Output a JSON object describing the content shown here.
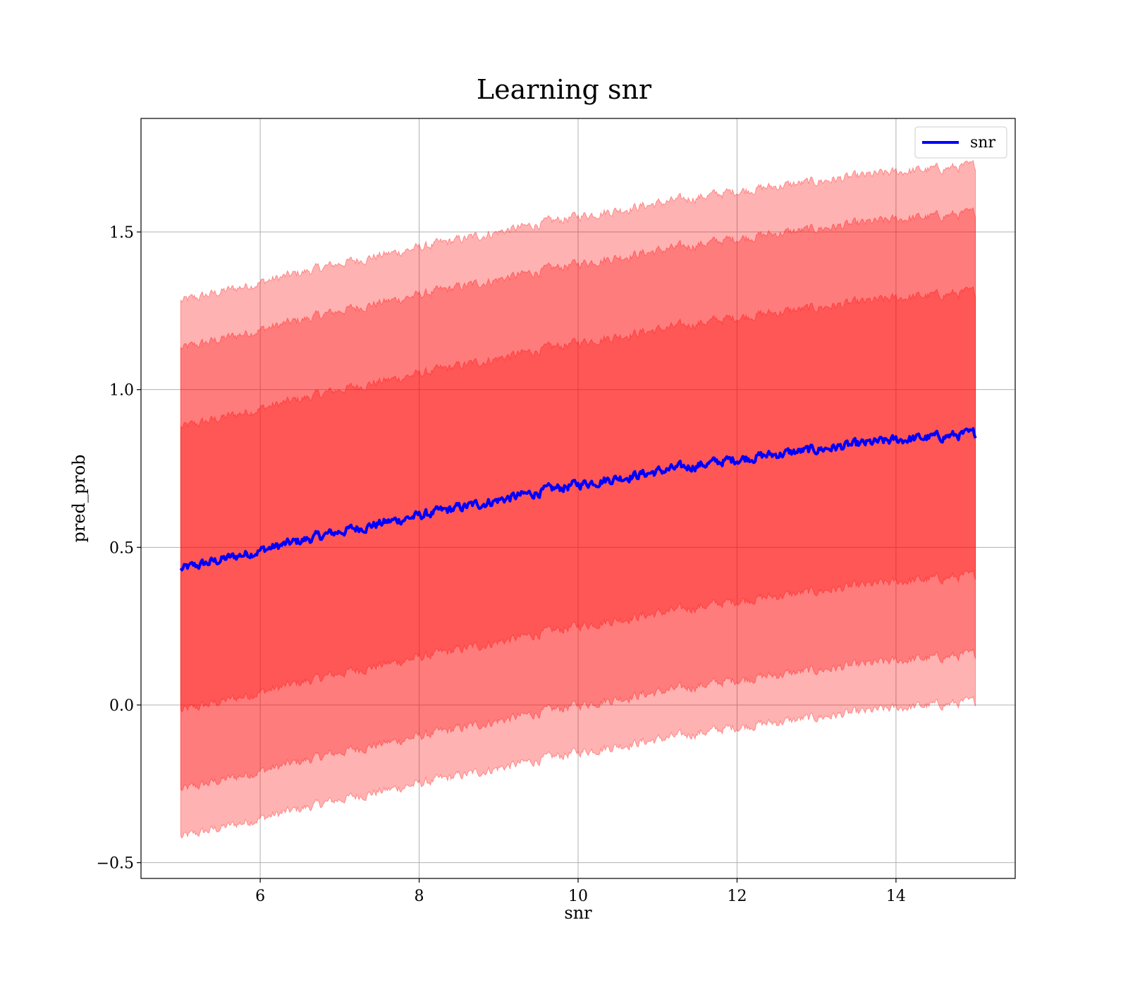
{
  "chart_data": {
    "type": "line",
    "title": "Learning snr",
    "xlabel": "snr",
    "ylabel": "pred_prob",
    "xlim": [
      4.5,
      15.5
    ],
    "ylim": [
      -0.55,
      1.86
    ],
    "grid": true,
    "legend_position": "top-right",
    "x_ticks": [
      6,
      8,
      10,
      12,
      14
    ],
    "x_tick_labels": [
      "6",
      "8",
      "10",
      "12",
      "14"
    ],
    "y_ticks": [
      -0.5,
      0.0,
      0.5,
      1.0,
      1.5
    ],
    "y_tick_labels": [
      "−0.5",
      "0.0",
      "0.5",
      "1.0",
      "1.5"
    ],
    "x_range": [
      5.0,
      15.0
    ],
    "series": [
      {
        "name": "snr",
        "color": "#0000ff",
        "x": [
          5,
          6,
          7,
          8,
          9,
          10,
          11,
          12,
          13,
          14,
          15
        ],
        "mean": [
          0.43,
          0.49,
          0.55,
          0.6,
          0.65,
          0.7,
          0.74,
          0.78,
          0.81,
          0.84,
          0.86
        ]
      }
    ],
    "bands": [
      {
        "level": "1 std",
        "color": "#ff0000",
        "opacity": 0.3,
        "half_width": 0.45
      },
      {
        "level": "2 std",
        "color": "#ff0000",
        "opacity": 0.3,
        "half_width": 0.7
      },
      {
        "level": "3 std",
        "color": "#ff0000",
        "opacity": 0.3,
        "half_width": 0.85
      }
    ]
  }
}
